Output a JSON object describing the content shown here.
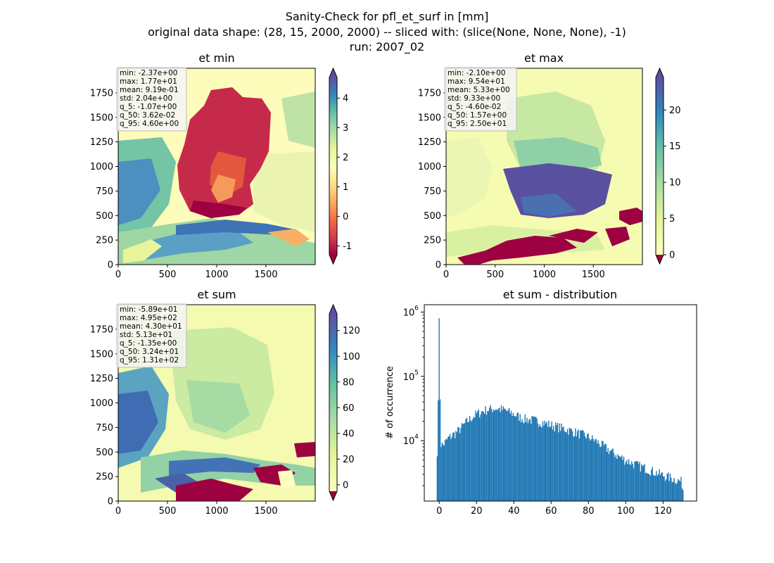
{
  "figure": {
    "suptitle": [
      "Sanity-Check for pfl_et_surf in [mm]",
      "original data shape: (28, 15, 2000, 2000) -- sliced with: (slice(None, None, None), -1)",
      "run: 2007_02"
    ]
  },
  "chart_data": [
    {
      "type": "heatmap",
      "title": "et min",
      "xlim": [
        0,
        2000
      ],
      "ylim": [
        0,
        2000
      ],
      "x_ticks": [
        0,
        500,
        1000,
        1500
      ],
      "y_ticks": [
        0,
        250,
        500,
        750,
        1000,
        1250,
        1500,
        1750
      ],
      "colormap": "Spectral",
      "colorbar": {
        "range": [
          -1.3,
          4.7
        ],
        "ticks": [
          -1,
          0,
          1,
          2,
          3,
          4
        ],
        "extend": "both"
      },
      "stats": [
        "min: -2.37e+00",
        "max: 1.77e+01",
        "mean: 9.19e-01",
        "std: 2.04e+00",
        "q_5: -1.07e+00",
        "q_50: 3.62e-02",
        "q_95: 4.60e+00"
      ]
    },
    {
      "type": "heatmap",
      "title": "et max",
      "xlim": [
        0,
        2000
      ],
      "ylim": [
        0,
        2000
      ],
      "x_ticks": [
        0,
        500,
        1000,
        1500
      ],
      "y_ticks": [
        0,
        250,
        500,
        750,
        1000,
        1250,
        1500,
        1750
      ],
      "colormap": "Spectral",
      "colorbar": {
        "range": [
          0,
          24.5
        ],
        "ticks": [
          0,
          5,
          10,
          15,
          20
        ],
        "extend": "both"
      },
      "stats": [
        "min: -2.10e+00",
        "max: 9.54e+01",
        "mean: 5.33e+00",
        "std: 9.33e+00",
        "q_5: -4.60e-02",
        "q_50: 1.57e+00",
        "q_95: 2.50e+01"
      ]
    },
    {
      "type": "heatmap",
      "title": "et sum",
      "xlim": [
        0,
        2000
      ],
      "ylim": [
        0,
        2000
      ],
      "x_ticks": [
        0,
        500,
        1000,
        1500
      ],
      "y_ticks": [
        0,
        250,
        500,
        750,
        1000,
        1250,
        1500,
        1750
      ],
      "colormap": "Spectral",
      "colorbar": {
        "range": [
          -5,
          133
        ],
        "ticks": [
          0,
          20,
          40,
          60,
          80,
          100,
          120
        ],
        "extend": "both"
      },
      "stats": [
        "min: -5.89e+01",
        "max: 4.95e+02",
        "mean: 4.30e+01",
        "std: 5.13e+01",
        "q_5: -1.35e+00",
        "q_50: 3.24e+01",
        "q_95: 1.31e+02"
      ]
    },
    {
      "type": "bar",
      "title": "et sum - distribution",
      "ylabel": "# of occurrence",
      "yscale": "log",
      "xlim": [
        -8,
        138
      ],
      "x_ticks": [
        0,
        20,
        40,
        60,
        80,
        100,
        120
      ],
      "y_ticks": [
        10000,
        100000,
        1000000
      ],
      "y_tick_labels": [
        [
          "10",
          "4"
        ],
        [
          "10",
          "5"
        ],
        [
          "10",
          "6"
        ]
      ],
      "bin_range": [
        -1.35,
        131
      ],
      "bar_color": "#1f77b4",
      "anchors": [
        [
          -1.3,
          5500
        ],
        [
          -0.8,
          9500
        ],
        [
          0,
          800000
        ],
        [
          0.8,
          9000
        ],
        [
          2,
          8500
        ],
        [
          5,
          11000
        ],
        [
          10,
          14000
        ],
        [
          15,
          20000
        ],
        [
          20,
          26000
        ],
        [
          25,
          30000
        ],
        [
          30,
          32000
        ],
        [
          35,
          30000
        ],
        [
          40,
          26000
        ],
        [
          45,
          22000
        ],
        [
          50,
          21000
        ],
        [
          55,
          19500
        ],
        [
          60,
          17500
        ],
        [
          65,
          16000
        ],
        [
          70,
          14500
        ],
        [
          75,
          13000
        ],
        [
          80,
          11500
        ],
        [
          85,
          9500
        ],
        [
          90,
          7500
        ],
        [
          95,
          6000
        ],
        [
          100,
          5000
        ],
        [
          105,
          4300
        ],
        [
          110,
          3800
        ],
        [
          115,
          3300
        ],
        [
          120,
          2900
        ],
        [
          125,
          2600
        ],
        [
          130,
          2300
        ],
        [
          131,
          1600
        ]
      ]
    }
  ]
}
